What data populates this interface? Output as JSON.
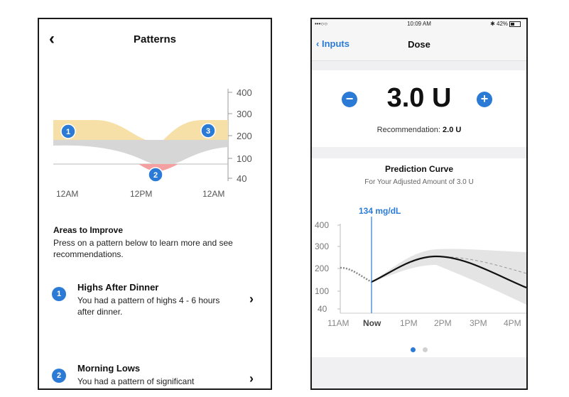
{
  "patterns_screen": {
    "back_icon": "chevron-left-icon",
    "title": "Patterns",
    "chart": {
      "y_ticks": [
        "400",
        "300",
        "200",
        "100",
        "40"
      ],
      "x_ticks": [
        "12AM",
        "12PM",
        "12AM"
      ],
      "markers": [
        "1",
        "2",
        "3"
      ],
      "colors": {
        "high_band": "#f7e0a8",
        "range_band": "#d6d6d6",
        "low_band": "#f4a0a0",
        "marker": "#2b7bd6"
      }
    },
    "areas": {
      "title": "Areas to Improve",
      "description": "Press on a pattern below to learn more and see recommendations."
    },
    "items": [
      {
        "badge": "1",
        "title": "Highs After Dinner",
        "text": "You had a pattern of highs 4 - 6 hours after dinner."
      },
      {
        "badge": "2",
        "title": "Morning Lows",
        "text": "You had a pattern of significant"
      }
    ]
  },
  "dose_screen": {
    "status": {
      "carrier": "•••○○ ",
      "time": "10:09 AM",
      "battery": "✱ 42%"
    },
    "nav": {
      "back_label": "Inputs",
      "title": "Dose"
    },
    "dose": {
      "value": "3.0 U",
      "minus": "−",
      "plus": "+",
      "rec_label": "Recommendation:",
      "rec_value": "2.0 U"
    },
    "prediction": {
      "title": "Prediction Curve",
      "subtitle": "For Your Adjusted Amount of 3.0 U",
      "current_label": "134 mg/dL",
      "y_ticks": [
        "400",
        "300",
        "200",
        "100",
        "40"
      ],
      "x_ticks": [
        "11AM",
        "Now",
        "1PM",
        "2PM",
        "3PM",
        "4PM"
      ],
      "accent": "#2b7bd6"
    },
    "page_dots": {
      "count": 2,
      "active": 0
    }
  }
}
